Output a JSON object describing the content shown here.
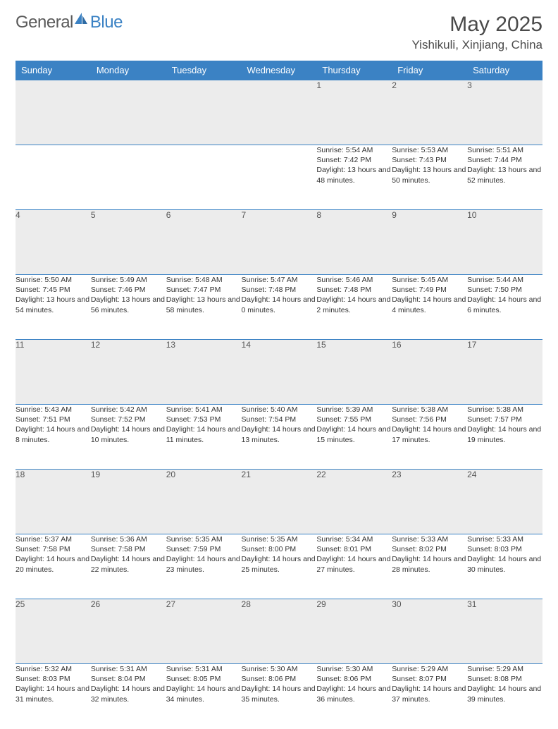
{
  "logo": {
    "general": "General",
    "blue": "Blue"
  },
  "title": "May 2025",
  "location": "Yishikuli, Xinjiang, China",
  "colors": {
    "header_bg": "#3b82c4",
    "header_text": "#ffffff",
    "daynum_bg": "#ececec",
    "border": "#3b82c4",
    "text": "#333333",
    "title_text": "#4a4a4a"
  },
  "weekdays": [
    "Sunday",
    "Monday",
    "Tuesday",
    "Wednesday",
    "Thursday",
    "Friday",
    "Saturday"
  ],
  "weeks": [
    [
      null,
      null,
      null,
      null,
      {
        "n": "1",
        "sr": "5:54 AM",
        "ss": "7:42 PM",
        "d": "13 hours and 48 minutes."
      },
      {
        "n": "2",
        "sr": "5:53 AM",
        "ss": "7:43 PM",
        "d": "13 hours and 50 minutes."
      },
      {
        "n": "3",
        "sr": "5:51 AM",
        "ss": "7:44 PM",
        "d": "13 hours and 52 minutes."
      }
    ],
    [
      {
        "n": "4",
        "sr": "5:50 AM",
        "ss": "7:45 PM",
        "d": "13 hours and 54 minutes."
      },
      {
        "n": "5",
        "sr": "5:49 AM",
        "ss": "7:46 PM",
        "d": "13 hours and 56 minutes."
      },
      {
        "n": "6",
        "sr": "5:48 AM",
        "ss": "7:47 PM",
        "d": "13 hours and 58 minutes."
      },
      {
        "n": "7",
        "sr": "5:47 AM",
        "ss": "7:48 PM",
        "d": "14 hours and 0 minutes."
      },
      {
        "n": "8",
        "sr": "5:46 AM",
        "ss": "7:48 PM",
        "d": "14 hours and 2 minutes."
      },
      {
        "n": "9",
        "sr": "5:45 AM",
        "ss": "7:49 PM",
        "d": "14 hours and 4 minutes."
      },
      {
        "n": "10",
        "sr": "5:44 AM",
        "ss": "7:50 PM",
        "d": "14 hours and 6 minutes."
      }
    ],
    [
      {
        "n": "11",
        "sr": "5:43 AM",
        "ss": "7:51 PM",
        "d": "14 hours and 8 minutes."
      },
      {
        "n": "12",
        "sr": "5:42 AM",
        "ss": "7:52 PM",
        "d": "14 hours and 10 minutes."
      },
      {
        "n": "13",
        "sr": "5:41 AM",
        "ss": "7:53 PM",
        "d": "14 hours and 11 minutes."
      },
      {
        "n": "14",
        "sr": "5:40 AM",
        "ss": "7:54 PM",
        "d": "14 hours and 13 minutes."
      },
      {
        "n": "15",
        "sr": "5:39 AM",
        "ss": "7:55 PM",
        "d": "14 hours and 15 minutes."
      },
      {
        "n": "16",
        "sr": "5:38 AM",
        "ss": "7:56 PM",
        "d": "14 hours and 17 minutes."
      },
      {
        "n": "17",
        "sr": "5:38 AM",
        "ss": "7:57 PM",
        "d": "14 hours and 19 minutes."
      }
    ],
    [
      {
        "n": "18",
        "sr": "5:37 AM",
        "ss": "7:58 PM",
        "d": "14 hours and 20 minutes."
      },
      {
        "n": "19",
        "sr": "5:36 AM",
        "ss": "7:58 PM",
        "d": "14 hours and 22 minutes."
      },
      {
        "n": "20",
        "sr": "5:35 AM",
        "ss": "7:59 PM",
        "d": "14 hours and 23 minutes."
      },
      {
        "n": "21",
        "sr": "5:35 AM",
        "ss": "8:00 PM",
        "d": "14 hours and 25 minutes."
      },
      {
        "n": "22",
        "sr": "5:34 AM",
        "ss": "8:01 PM",
        "d": "14 hours and 27 minutes."
      },
      {
        "n": "23",
        "sr": "5:33 AM",
        "ss": "8:02 PM",
        "d": "14 hours and 28 minutes."
      },
      {
        "n": "24",
        "sr": "5:33 AM",
        "ss": "8:03 PM",
        "d": "14 hours and 30 minutes."
      }
    ],
    [
      {
        "n": "25",
        "sr": "5:32 AM",
        "ss": "8:03 PM",
        "d": "14 hours and 31 minutes."
      },
      {
        "n": "26",
        "sr": "5:31 AM",
        "ss": "8:04 PM",
        "d": "14 hours and 32 minutes."
      },
      {
        "n": "27",
        "sr": "5:31 AM",
        "ss": "8:05 PM",
        "d": "14 hours and 34 minutes."
      },
      {
        "n": "28",
        "sr": "5:30 AM",
        "ss": "8:06 PM",
        "d": "14 hours and 35 minutes."
      },
      {
        "n": "29",
        "sr": "5:30 AM",
        "ss": "8:06 PM",
        "d": "14 hours and 36 minutes."
      },
      {
        "n": "30",
        "sr": "5:29 AM",
        "ss": "8:07 PM",
        "d": "14 hours and 37 minutes."
      },
      {
        "n": "31",
        "sr": "5:29 AM",
        "ss": "8:08 PM",
        "d": "14 hours and 39 minutes."
      }
    ]
  ],
  "labels": {
    "sunrise": "Sunrise:",
    "sunset": "Sunset:",
    "daylight": "Daylight:"
  }
}
